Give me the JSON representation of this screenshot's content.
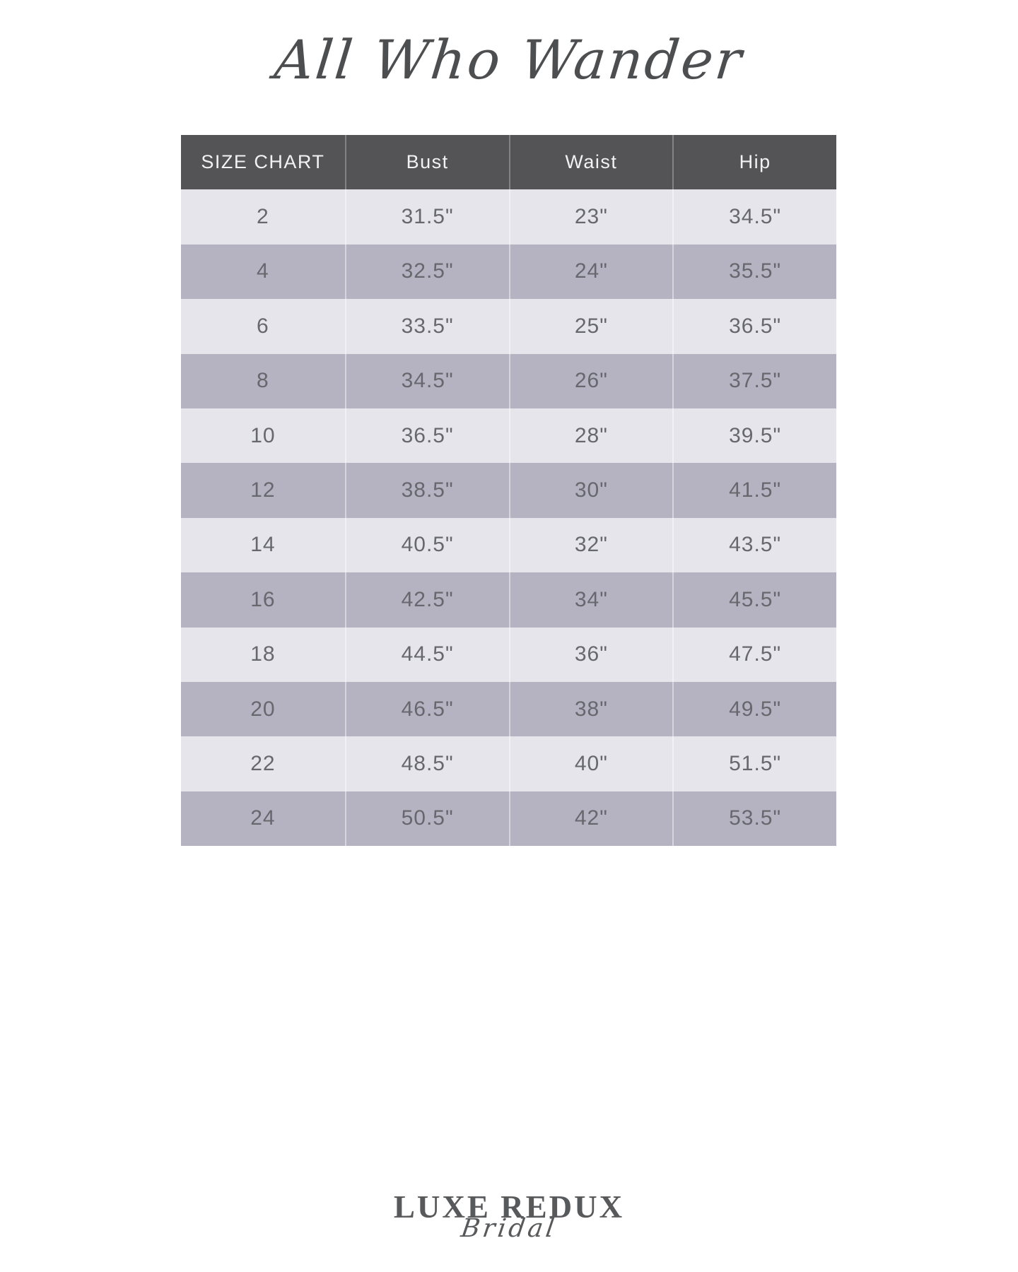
{
  "brand_header": {
    "title": "All Who Wander",
    "color": "#4d4e50"
  },
  "size_chart": {
    "columns": [
      "SIZE CHART",
      "Bust",
      "Waist",
      "Hip"
    ],
    "rows": [
      {
        "size": "2",
        "bust": "31.5\"",
        "waist": "23\"",
        "hip": "34.5\""
      },
      {
        "size": "4",
        "bust": "32.5\"",
        "waist": "24\"",
        "hip": "35.5\""
      },
      {
        "size": "6",
        "bust": "33.5\"",
        "waist": "25\"",
        "hip": "36.5\""
      },
      {
        "size": "8",
        "bust": "34.5\"",
        "waist": "26\"",
        "hip": "37.5\""
      },
      {
        "size": "10",
        "bust": "36.5\"",
        "waist": "28\"",
        "hip": "39.5\""
      },
      {
        "size": "12",
        "bust": "38.5\"",
        "waist": "30\"",
        "hip": "41.5\""
      },
      {
        "size": "14",
        "bust": "40.5\"",
        "waist": "32\"",
        "hip": "43.5\""
      },
      {
        "size": "16",
        "bust": "42.5\"",
        "waist": "34\"",
        "hip": "45.5\""
      },
      {
        "size": "18",
        "bust": "44.5\"",
        "waist": "36\"",
        "hip": "47.5\""
      },
      {
        "size": "20",
        "bust": "46.5\"",
        "waist": "38\"",
        "hip": "49.5\""
      },
      {
        "size": "22",
        "bust": "48.5\"",
        "waist": "40\"",
        "hip": "51.5\""
      },
      {
        "size": "24",
        "bust": "50.5\"",
        "waist": "42\"",
        "hip": "53.5\""
      }
    ],
    "colors": {
      "header_bg": "#545456",
      "header_text": "#f2f2f2",
      "row_light": "#e6e5ec",
      "row_dark": "#b5b3c2",
      "cell_text": "#67676e"
    }
  },
  "footer_logo": {
    "line1": "LUXE REDUX",
    "line2": "Bridal",
    "color": "#58595b"
  },
  "chart_data": {
    "type": "table",
    "title": "All Who Wander Size Chart",
    "columns": [
      "Size",
      "Bust",
      "Waist",
      "Hip"
    ],
    "rows": [
      [
        "2",
        "31.5\"",
        "23\"",
        "34.5\""
      ],
      [
        "4",
        "32.5\"",
        "24\"",
        "35.5\""
      ],
      [
        "6",
        "33.5\"",
        "25\"",
        "36.5\""
      ],
      [
        "8",
        "34.5\"",
        "26\"",
        "37.5\""
      ],
      [
        "10",
        "36.5\"",
        "28\"",
        "39.5\""
      ],
      [
        "12",
        "38.5\"",
        "30\"",
        "41.5\""
      ],
      [
        "14",
        "40.5\"",
        "32\"",
        "43.5\""
      ],
      [
        "16",
        "42.5\"",
        "34\"",
        "45.5\""
      ],
      [
        "18",
        "44.5\"",
        "36\"",
        "47.5\""
      ],
      [
        "20",
        "46.5\"",
        "38\"",
        "49.5\""
      ],
      [
        "22",
        "48.5\"",
        "40\"",
        "51.5\""
      ],
      [
        "24",
        "50.5\"",
        "42\"",
        "53.5\""
      ]
    ]
  }
}
